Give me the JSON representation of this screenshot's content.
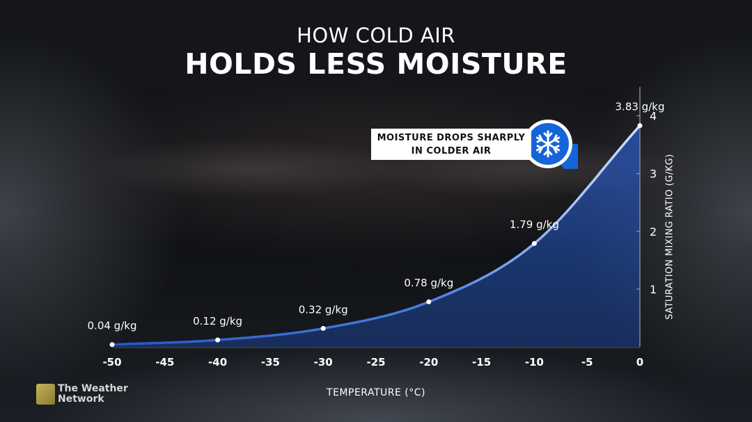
{
  "title_line1": "HOW COLD AIR",
  "title_line2": "HOLDS LESS MOISTURE",
  "callout_line1": "MOISTURE DROPS SHARPLY",
  "callout_line2": "IN COLDER AIR",
  "callout_icon": "snowflake-icon",
  "brand": {
    "line1": "The Weather",
    "line2": "Network"
  },
  "colors": {
    "curve": "#2f5fd0",
    "fill": "#1f4a9e",
    "point": "#ffffff",
    "badge": "#1565d8"
  },
  "chart_data": {
    "type": "line",
    "x": [
      -50,
      -40,
      -30,
      -20,
      -10,
      0
    ],
    "values": [
      0.04,
      0.12,
      0.32,
      0.78,
      1.79,
      3.83
    ],
    "data_labels": [
      "0.04 g/kg",
      "0.12 g/kg",
      "0.32 g/kg",
      "0.78 g/kg",
      "1.79 g/kg",
      "3.83 g/kg"
    ],
    "xticks": [
      -50,
      -45,
      -40,
      -35,
      -30,
      -25,
      -20,
      -15,
      -10,
      -5,
      0
    ],
    "yticks": [
      1,
      2,
      3,
      4
    ],
    "xlim": [
      -50,
      0
    ],
    "ylim": [
      0,
      4.5
    ],
    "xlabel": "TEMPERATURE (°C)",
    "ylabel": "SATURATION MIXING RATIO (G/KG)",
    "fill_under": true,
    "grid": false
  }
}
